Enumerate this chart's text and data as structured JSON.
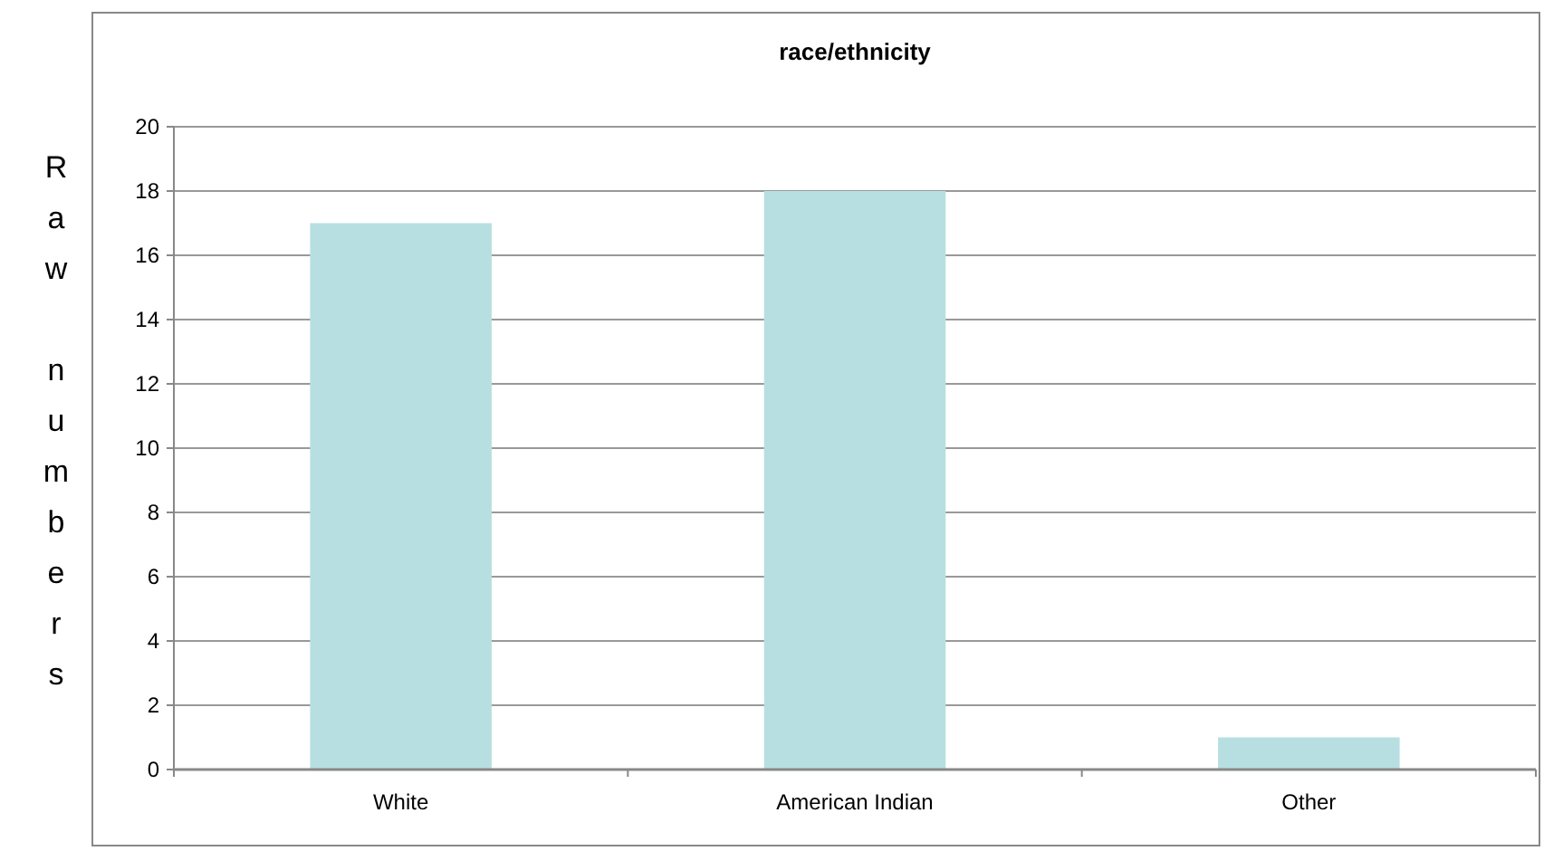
{
  "chart_data": {
    "type": "bar",
    "title": "race/ethnicity",
    "ylabel": "Raw numbers",
    "categories": [
      "White",
      "American Indian",
      "Other"
    ],
    "values": [
      17,
      18,
      1
    ],
    "color": "#b7dfe2",
    "ylim": [
      0,
      20
    ],
    "yticks": [
      0,
      2,
      4,
      6,
      8,
      10,
      12,
      14,
      16,
      18,
      20
    ],
    "grid": "y"
  }
}
